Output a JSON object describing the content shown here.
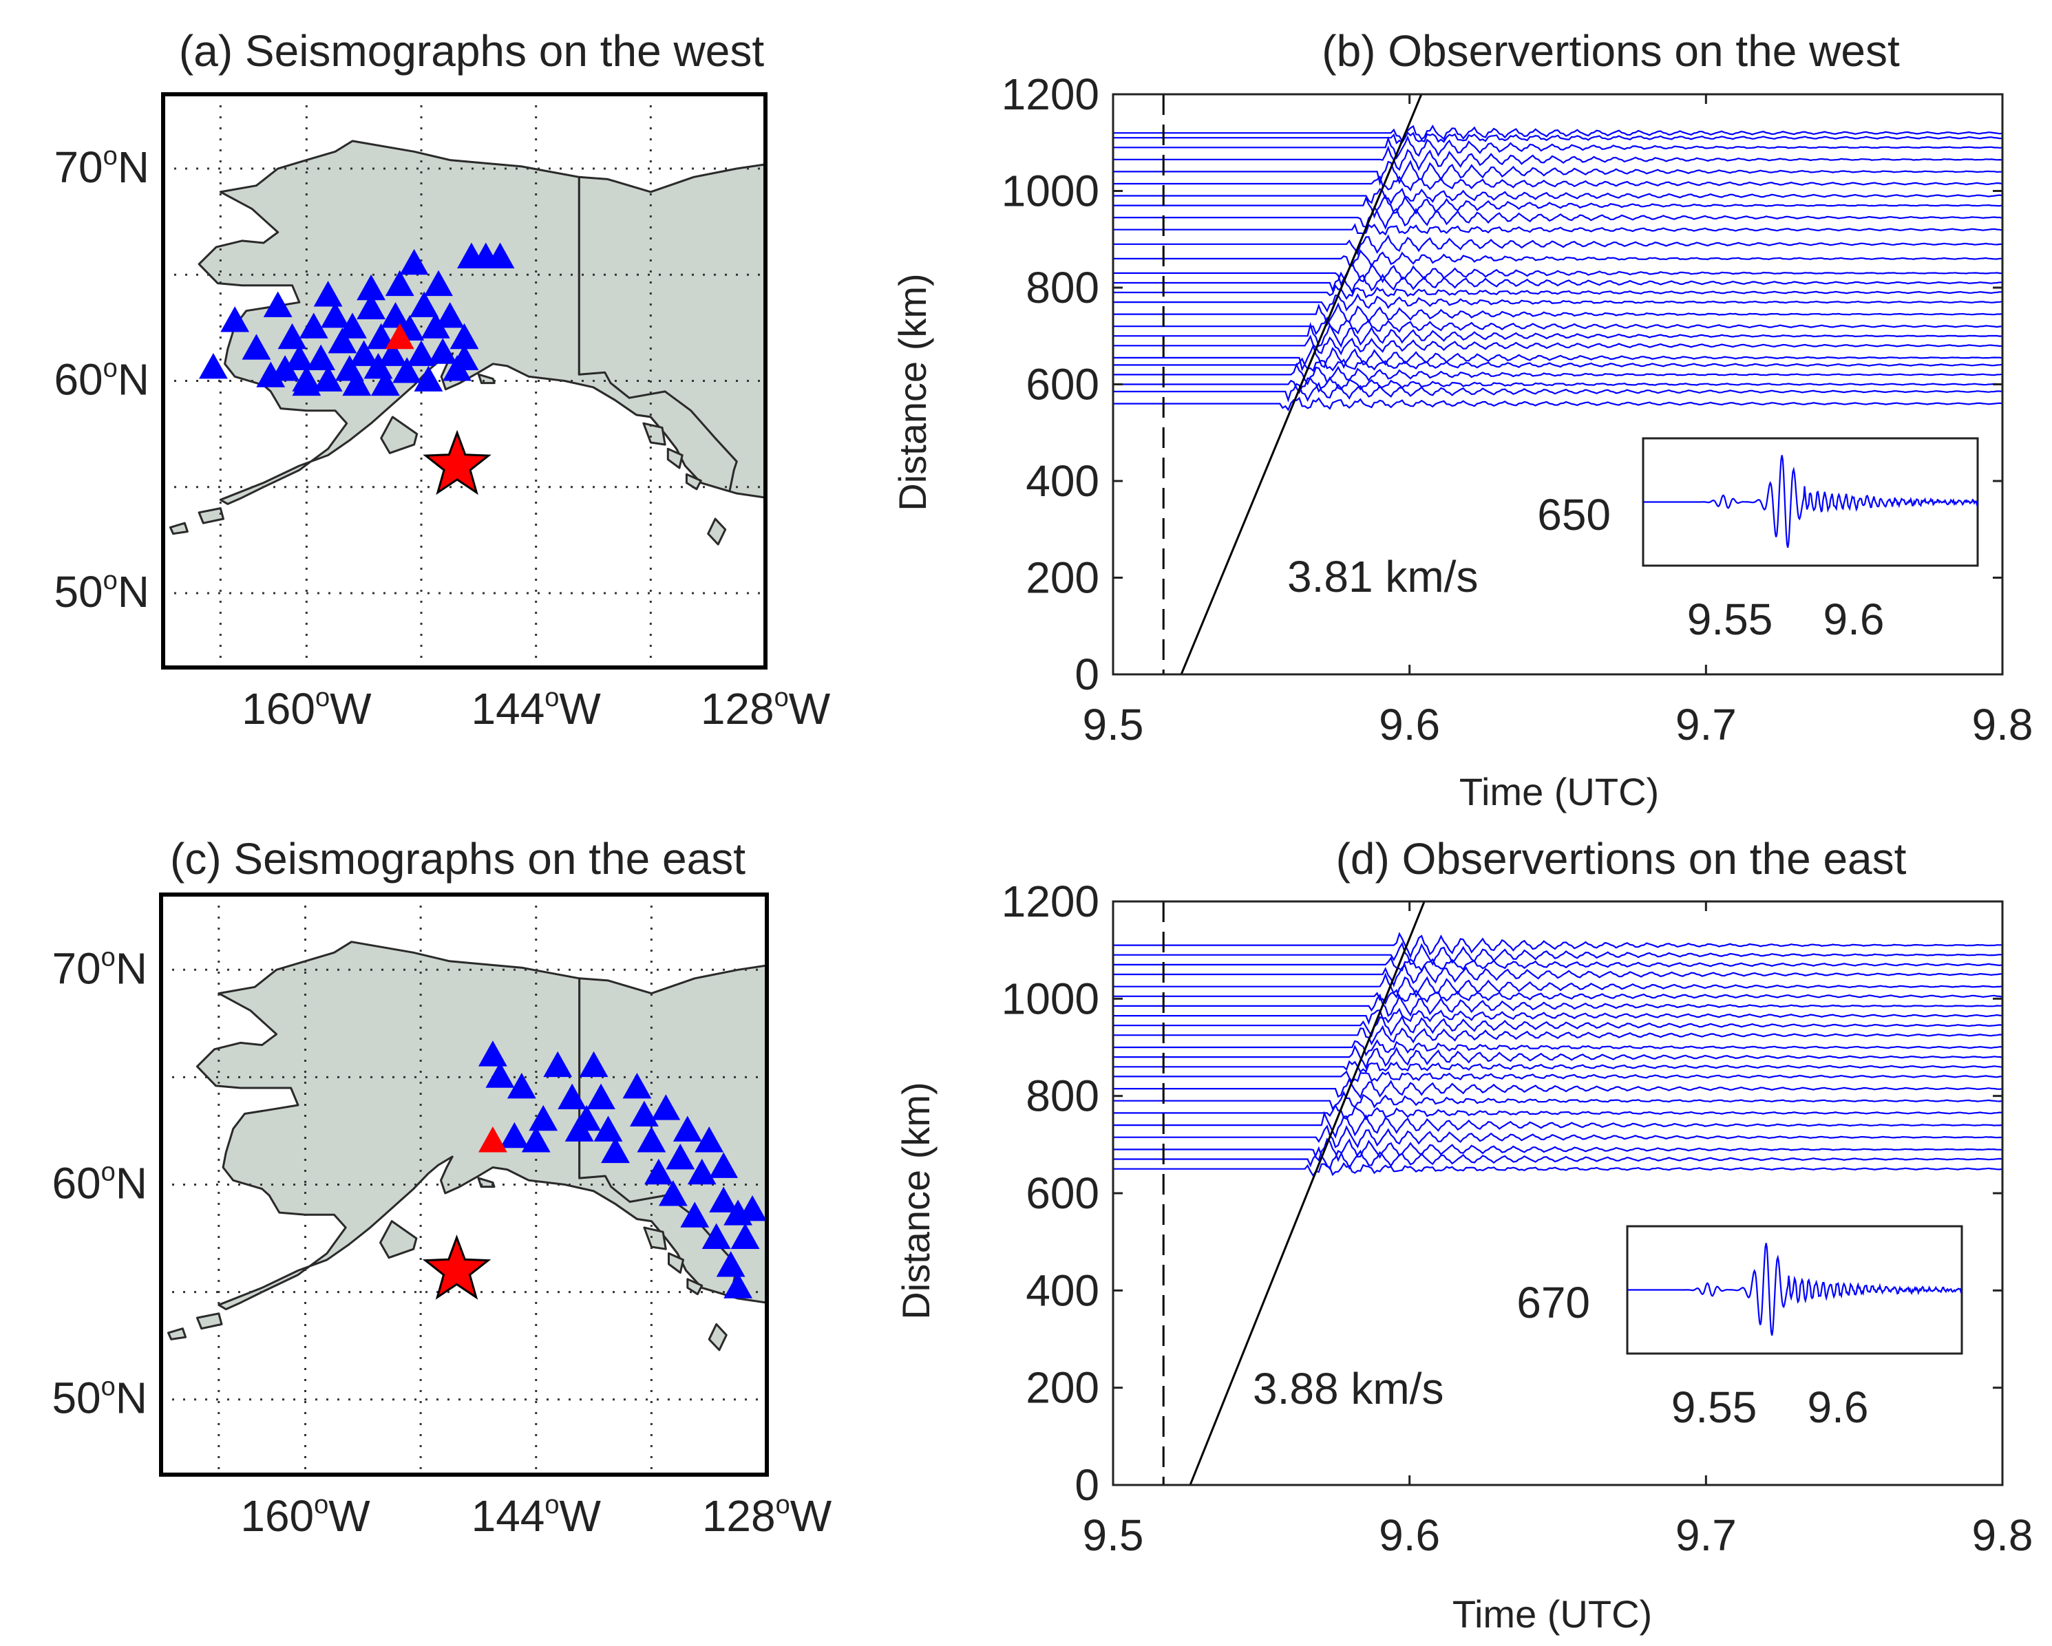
{
  "chart_data": [
    {
      "id": "a",
      "type": "map",
      "title": "(a) Seismographs on the west",
      "lat_ticks": [
        "70",
        "60",
        "50"
      ],
      "lat_suffix": "N",
      "lon_ticks": [
        "160",
        "144",
        "128"
      ],
      "lon_suffix": "W",
      "degree_mark": "o",
      "lon_range": [
        -170,
        -128
      ],
      "lat_range": [
        46.5,
        73.5
      ],
      "land_color": "#cdd5cf",
      "station_color": "#0000ff",
      "reference_station_color": "#ff0000",
      "epicenter_color": "#ff0000",
      "epicenter": {
        "lon": -149.5,
        "lat": 56.0
      },
      "reference_station": {
        "lon": -153.5,
        "lat": 62.0
      },
      "stations": [
        [
          -166.5,
          60.6
        ],
        [
          -165,
          62.8
        ],
        [
          -163.5,
          61.5
        ],
        [
          -162,
          63.5
        ],
        [
          -161.5,
          60.5
        ],
        [
          -161,
          62
        ],
        [
          -160.5,
          61
        ],
        [
          -160,
          59.8
        ],
        [
          -159.5,
          62.5
        ],
        [
          -159,
          61
        ],
        [
          -158.5,
          60
        ],
        [
          -158,
          63
        ],
        [
          -157.5,
          61.8
        ],
        [
          -157,
          60.5
        ],
        [
          -156.8,
          62.5
        ],
        [
          -156.5,
          59.8
        ],
        [
          -156,
          61.2
        ],
        [
          -155.5,
          63.4
        ],
        [
          -155,
          60.6
        ],
        [
          -154.8,
          62
        ],
        [
          -154.5,
          59.8
        ],
        [
          -154,
          61.2
        ],
        [
          -153.8,
          63
        ],
        [
          -153.5,
          64.5
        ],
        [
          -153,
          60.4
        ],
        [
          -152.8,
          62.4
        ],
        [
          -152.5,
          65.5
        ],
        [
          -152,
          61.2
        ],
        [
          -151.8,
          63.5
        ],
        [
          -151.5,
          60
        ],
        [
          -151,
          62.5
        ],
        [
          -150.8,
          64.5
        ],
        [
          -150.5,
          61.3
        ],
        [
          -150,
          63
        ],
        [
          -149.5,
          60.5
        ],
        [
          -149,
          62
        ],
        [
          -148.5,
          65.8
        ],
        [
          -147.5,
          65.8
        ],
        [
          -146.5,
          65.8
        ],
        [
          -160,
          60
        ],
        [
          -162.5,
          60.2
        ],
        [
          -158.5,
          64
        ],
        [
          -155.5,
          64.3
        ],
        [
          -149,
          61
        ]
      ]
    },
    {
      "id": "b",
      "type": "line",
      "title": "(b) Observertions on the west",
      "xlabel": "Time (UTC)",
      "ylabel": "Distance (km)",
      "xlim": [
        9.5,
        9.8
      ],
      "ylim": [
        0,
        1200
      ],
      "xticks": [
        "9.5",
        "9.6",
        "9.7",
        "9.8"
      ],
      "yticks": [
        "0",
        "200",
        "400",
        "600",
        "800",
        "1000",
        "1200"
      ],
      "line_color": "#0000ff",
      "origin_time": 9.517,
      "moveout_line": {
        "x": [
          9.523,
          9.604
        ],
        "y": [
          0,
          1200
        ]
      },
      "velocity_label": "3.81 km/s",
      "trace_distances": [
        560,
        585,
        600,
        620,
        640,
        655,
        680,
        700,
        720,
        745,
        770,
        790,
        810,
        830,
        860,
        890,
        920,
        945,
        970,
        990,
        1015,
        1040,
        1065,
        1090,
        1110,
        1120
      ],
      "inset": {
        "label": "650",
        "xlim": [
          9.515,
          9.65
        ],
        "xticks": [
          "9.55",
          "9.6"
        ]
      }
    },
    {
      "id": "c",
      "type": "map",
      "title": "(c) Seismographs on the east",
      "lat_ticks": [
        "70",
        "60",
        "50"
      ],
      "lat_suffix": "N",
      "lon_ticks": [
        "160",
        "144",
        "128"
      ],
      "lon_suffix": "W",
      "degree_mark": "o",
      "lon_range": [
        -170,
        -128
      ],
      "lat_range": [
        46.5,
        73.5
      ],
      "land_color": "#cdd5cf",
      "station_color": "#0000ff",
      "reference_station_color": "#ff0000",
      "epicenter_color": "#ff0000",
      "epicenter": {
        "lon": -149.5,
        "lat": 56.0
      },
      "reference_station": {
        "lon": -147.0,
        "lat": 62.0
      },
      "stations": [
        [
          -147,
          66
        ],
        [
          -146.5,
          65
        ],
        [
          -145,
          64.5
        ],
        [
          -144,
          62
        ],
        [
          -143.5,
          63
        ],
        [
          -142.5,
          65.5
        ],
        [
          -141.5,
          64
        ],
        [
          -141,
          62.5
        ],
        [
          -140.5,
          63
        ],
        [
          -140,
          65.5
        ],
        [
          -139.5,
          64
        ],
        [
          -139,
          62.5
        ],
        [
          -137,
          64.5
        ],
        [
          -136.5,
          63.2
        ],
        [
          -136,
          62
        ],
        [
          -135.5,
          60.5
        ],
        [
          -135,
          63.5
        ],
        [
          -134.5,
          59.5
        ],
        [
          -134,
          61.2
        ],
        [
          -133.5,
          62.5
        ],
        [
          -133,
          58.5
        ],
        [
          -132.5,
          60.5
        ],
        [
          -132,
          62
        ],
        [
          -131.5,
          57.5
        ],
        [
          -131,
          59.2
        ],
        [
          -131,
          60.8
        ],
        [
          -130.5,
          56.2
        ],
        [
          -130,
          58.6
        ],
        [
          -130,
          55.2
        ],
        [
          -129.5,
          57.5
        ],
        [
          -129,
          58.8
        ],
        [
          -145.5,
          62.2
        ],
        [
          -138.5,
          61.5
        ]
      ]
    },
    {
      "id": "d",
      "type": "line",
      "title": "(d) Observertions on the east",
      "xlabel": "Time (UTC)",
      "ylabel": "Distance (km)",
      "xlim": [
        9.5,
        9.8
      ],
      "ylim": [
        0,
        1200
      ],
      "xticks": [
        "9.5",
        "9.6",
        "9.7",
        "9.8"
      ],
      "yticks": [
        "0",
        "200",
        "400",
        "600",
        "800",
        "1000",
        "1200"
      ],
      "line_color": "#0000ff",
      "origin_time": 9.517,
      "moveout_line": {
        "x": [
          9.526,
          9.605
        ],
        "y": [
          0,
          1200
        ]
      },
      "velocity_label": "3.88 km/s",
      "trace_distances": [
        650,
        670,
        690,
        715,
        740,
        765,
        790,
        815,
        840,
        860,
        880,
        900,
        925,
        945,
        965,
        985,
        1005,
        1025,
        1050,
        1070,
        1090,
        1110
      ],
      "inset": {
        "label": "670",
        "xlim": [
          9.515,
          9.65
        ],
        "xticks": [
          "9.55",
          "9.6"
        ]
      }
    }
  ]
}
